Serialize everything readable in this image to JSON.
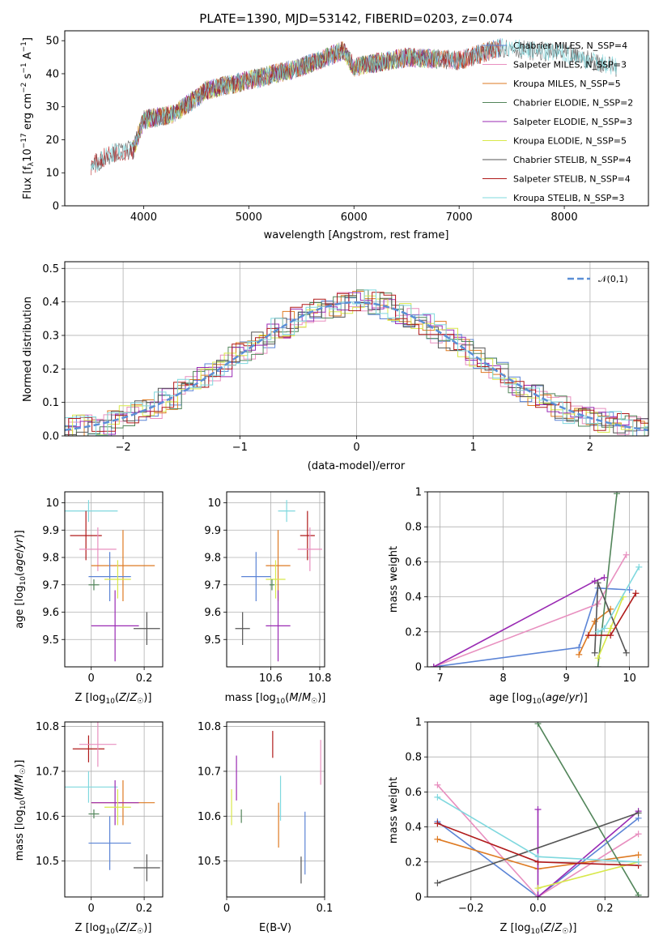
{
  "chart_data": [
    {
      "type": "line",
      "title": "PLATE=1390, MJD=53142, FIBERID=0203, z=0.074",
      "xlabel": "wavelength [Angstrom, rest frame]",
      "ylabel": "Flux [f_λ 10^-17 erg cm^-2 s^-1 A^-1]",
      "xlim": [
        3250,
        8800
      ],
      "ylim": [
        0,
        53
      ],
      "xticks": [
        4000,
        5000,
        6000,
        7000,
        8000
      ],
      "yticks": [
        0,
        10,
        20,
        30,
        40,
        50
      ],
      "legend_position": "lower-right",
      "series": [
        {
          "name": "Chabrier MILES, N_SSP=4",
          "color": "#5b84d6",
          "x_range": [
            3900,
            7400
          ]
        },
        {
          "name": "Salpeter MILES, N_SSP=3",
          "color": "#e88fbf",
          "x_range": [
            3900,
            7400
          ]
        },
        {
          "name": "Kroupa MILES, N_SSP=5",
          "color": "#de7a22",
          "x_range": [
            3900,
            7400
          ]
        },
        {
          "name": "Chabrier ELODIE, N_SSP=2",
          "color": "#52855a",
          "x_range": [
            3900,
            6800
          ]
        },
        {
          "name": "Salpeter ELODIE, N_SSP=3",
          "color": "#9a2ab3",
          "x_range": [
            3900,
            6800
          ]
        },
        {
          "name": "Kroupa ELODIE, N_SSP=5",
          "color": "#d8e84a",
          "x_range": [
            3900,
            6800
          ]
        },
        {
          "name": "Chabrier STELIB, N_SSP=4",
          "color": "#555555",
          "x_range": [
            3500,
            8500
          ]
        },
        {
          "name": "Salpeter STELIB, N_SSP=4",
          "color": "#b01a1a",
          "x_range": [
            3500,
            7400
          ]
        },
        {
          "name": "Kroupa STELIB, N_SSP=3",
          "color": "#7fd8de",
          "x_range": [
            3500,
            8500
          ]
        }
      ],
      "continuum_approx": {
        "x": [
          3500,
          3700,
          3900,
          4000,
          4300,
          4600,
          5000,
          5500,
          5900,
          6000,
          6500,
          7000,
          7400,
          8000,
          8500
        ],
        "y": [
          12,
          16,
          17,
          26,
          28,
          35,
          38,
          42,
          47,
          42,
          45,
          44,
          48,
          46,
          42
        ]
      }
    },
    {
      "type": "step",
      "xlabel": "(data-model)/error",
      "ylabel": "Normed distribution",
      "xlim": [
        -2.5,
        2.5
      ],
      "ylim": [
        0,
        0.52
      ],
      "xticks": [
        -2,
        -1,
        0,
        1,
        2
      ],
      "xtick_labels": [
        "−2",
        "−1",
        "0",
        "1",
        "2"
      ],
      "yticks": [
        0.0,
        0.1,
        0.2,
        0.3,
        0.4,
        0.5
      ],
      "ytick_labels": [
        "0.0",
        "0.1",
        "0.2",
        "0.3",
        "0.4",
        "0.5"
      ],
      "reference_curve": {
        "name": "𝒩(0,1)",
        "color": "#5b8fd6",
        "mean": 0,
        "sigma": 1
      },
      "histogram_bin_width": 0.1,
      "series_colors": [
        "#5b84d6",
        "#e88fbf",
        "#de7a22",
        "#52855a",
        "#9a2ab3",
        "#d8e84a",
        "#555555",
        "#b01a1a",
        "#7fd8de"
      ]
    },
    {
      "type": "scatter",
      "xlabel": "Z [log10(Z/Z☉)]",
      "ylabel": "age [log10(age/yr)]",
      "xlim": [
        -0.1,
        0.27
      ],
      "ylim": [
        9.4,
        10.04
      ],
      "xticks": [
        0.0,
        0.2
      ],
      "yticks": [
        9.5,
        9.6,
        9.7,
        9.8,
        9.9,
        10.0
      ],
      "points": [
        {
          "x": -0.01,
          "y": 9.97,
          "xerr": 0.11,
          "yerr": 0.04,
          "color": "#7fd8de"
        },
        {
          "x": -0.02,
          "y": 9.88,
          "xerr": 0.06,
          "yerr": 0.09,
          "color": "#b01a1a"
        },
        {
          "x": 0.025,
          "y": 9.83,
          "xerr": 0.07,
          "yerr": 0.08,
          "color": "#e88fbf"
        },
        {
          "x": 0.12,
          "y": 9.77,
          "xerr": 0.12,
          "yerr": 0.13,
          "color": "#de7a22"
        },
        {
          "x": 0.07,
          "y": 9.73,
          "xerr": 0.08,
          "yerr": 0.09,
          "color": "#5b84d6"
        },
        {
          "x": 0.1,
          "y": 9.72,
          "xerr": 0.05,
          "yerr": 0.07,
          "color": "#d8e84a"
        },
        {
          "x": 0.01,
          "y": 9.7,
          "xerr": 0.02,
          "yerr": 0.02,
          "color": "#52855a"
        },
        {
          "x": 0.09,
          "y": 9.55,
          "xerr": 0.09,
          "yerr": 0.13,
          "color": "#9a2ab3"
        },
        {
          "x": 0.21,
          "y": 9.54,
          "xerr": 0.05,
          "yerr": 0.06,
          "color": "#555555"
        }
      ]
    },
    {
      "type": "scatter",
      "xlabel": "mass [log10(M/M☉)]",
      "ylabel": "",
      "xlim": [
        10.42,
        10.82
      ],
      "ylim": [
        9.4,
        10.04
      ],
      "xticks": [
        10.6,
        10.8
      ],
      "yticks": [
        9.5,
        9.6,
        9.7,
        9.8,
        9.9,
        10.0
      ],
      "points": [
        {
          "x": 10.665,
          "y": 9.97,
          "xerr": 0.035,
          "yerr": 0.04,
          "color": "#7fd8de"
        },
        {
          "x": 10.75,
          "y": 9.88,
          "xerr": 0.03,
          "yerr": 0.09,
          "color": "#b01a1a"
        },
        {
          "x": 10.76,
          "y": 9.83,
          "xerr": 0.05,
          "yerr": 0.08,
          "color": "#e88fbf"
        },
        {
          "x": 10.63,
          "y": 9.77,
          "xerr": 0.05,
          "yerr": 0.13,
          "color": "#de7a22"
        },
        {
          "x": 10.54,
          "y": 9.73,
          "xerr": 0.06,
          "yerr": 0.09,
          "color": "#5b84d6"
        },
        {
          "x": 10.62,
          "y": 9.72,
          "xerr": 0.04,
          "yerr": 0.07,
          "color": "#d8e84a"
        },
        {
          "x": 10.605,
          "y": 9.7,
          "xerr": 0.01,
          "yerr": 0.02,
          "color": "#52855a"
        },
        {
          "x": 10.63,
          "y": 9.55,
          "xerr": 0.05,
          "yerr": 0.13,
          "color": "#9a2ab3"
        },
        {
          "x": 10.485,
          "y": 9.54,
          "xerr": 0.03,
          "yerr": 0.06,
          "color": "#555555"
        }
      ]
    },
    {
      "type": "line",
      "xlabel": "age [log10(age/yr)]",
      "ylabel": "mass weight",
      "xlim": [
        6.8,
        10.3
      ],
      "ylim": [
        0,
        1
      ],
      "xticks": [
        7,
        8,
        9,
        10
      ],
      "yticks": [
        0.0,
        0.2,
        0.4,
        0.6,
        0.8,
        1.0
      ],
      "series": [
        {
          "color": "#5b84d6",
          "x": [
            6.9,
            9.2,
            9.5,
            10.0
          ],
          "y": [
            0.0,
            0.11,
            0.45,
            0.44
          ]
        },
        {
          "color": "#e88fbf",
          "x": [
            6.9,
            9.5,
            9.95
          ],
          "y": [
            0.0,
            0.36,
            0.64
          ]
        },
        {
          "color": "#de7a22",
          "x": [
            9.2,
            9.45,
            9.7
          ],
          "y": [
            0.07,
            0.26,
            0.33
          ]
        },
        {
          "color": "#52855a",
          "x": [
            9.5,
            9.8
          ],
          "y": [
            0.0,
            0.99
          ]
        },
        {
          "color": "#9a2ab3",
          "x": [
            6.9,
            9.45,
            9.6
          ],
          "y": [
            0.0,
            0.49,
            0.51
          ]
        },
        {
          "color": "#d8e84a",
          "x": [
            9.5,
            9.7,
            9.9
          ],
          "y": [
            0.05,
            0.22,
            0.4
          ]
        },
        {
          "color": "#555555",
          "x": [
            9.45,
            9.5,
            9.95
          ],
          "y": [
            0.08,
            0.48,
            0.08
          ]
        },
        {
          "color": "#b01a1a",
          "x": [
            9.35,
            9.7,
            10.1
          ],
          "y": [
            0.18,
            0.18,
            0.42
          ]
        },
        {
          "color": "#7fd8de",
          "x": [
            9.5,
            9.6,
            10.15
          ],
          "y": [
            0.2,
            0.22,
            0.57
          ]
        }
      ]
    },
    {
      "type": "scatter",
      "xlabel": "Z [log10(Z/Z☉)]",
      "ylabel": "mass [log10(M/M☉)]",
      "xlim": [
        -0.1,
        0.27
      ],
      "ylim": [
        10.42,
        10.81
      ],
      "xticks": [
        0.0,
        0.2
      ],
      "yticks": [
        10.5,
        10.6,
        10.7,
        10.8
      ],
      "points": [
        {
          "x": -0.01,
          "y": 10.75,
          "xerr": 0.06,
          "yerr": 0.03,
          "color": "#b01a1a"
        },
        {
          "x": 0.025,
          "y": 10.76,
          "xerr": 0.07,
          "yerr": 0.05,
          "color": "#e88fbf"
        },
        {
          "x": -0.01,
          "y": 10.665,
          "xerr": 0.11,
          "yerr": 0.035,
          "color": "#7fd8de"
        },
        {
          "x": 0.12,
          "y": 10.63,
          "xerr": 0.12,
          "yerr": 0.05,
          "color": "#de7a22"
        },
        {
          "x": 0.09,
          "y": 10.63,
          "xerr": 0.09,
          "yerr": 0.05,
          "color": "#9a2ab3"
        },
        {
          "x": 0.1,
          "y": 10.62,
          "xerr": 0.05,
          "yerr": 0.04,
          "color": "#d8e84a"
        },
        {
          "x": 0.01,
          "y": 10.605,
          "xerr": 0.02,
          "yerr": 0.01,
          "color": "#52855a"
        },
        {
          "x": 0.07,
          "y": 10.54,
          "xerr": 0.08,
          "yerr": 0.06,
          "color": "#5b84d6"
        },
        {
          "x": 0.21,
          "y": 10.485,
          "xerr": 0.05,
          "yerr": 0.03,
          "color": "#555555"
        }
      ]
    },
    {
      "type": "scatter",
      "xlabel": "E(B-V)",
      "ylabel": "",
      "xlim": [
        0.0,
        0.1
      ],
      "ylim": [
        10.42,
        10.81
      ],
      "xticks": [
        0.0,
        0.1
      ],
      "yticks": [
        10.5,
        10.6,
        10.7,
        10.8
      ],
      "points": [
        {
          "x": 0.047,
          "y": 10.76,
          "yerr": 0.03,
          "color": "#b01a1a"
        },
        {
          "x": 0.096,
          "y": 10.72,
          "yerr": 0.05,
          "color": "#e88fbf"
        },
        {
          "x": 0.01,
          "y": 10.685,
          "yerr": 0.05,
          "color": "#9a2ab3"
        },
        {
          "x": 0.055,
          "y": 10.64,
          "yerr": 0.05,
          "color": "#7fd8de"
        },
        {
          "x": 0.005,
          "y": 10.62,
          "yerr": 0.04,
          "color": "#d8e84a"
        },
        {
          "x": 0.015,
          "y": 10.6,
          "yerr": 0.015,
          "color": "#52855a"
        },
        {
          "x": 0.053,
          "y": 10.58,
          "yerr": 0.05,
          "color": "#de7a22"
        },
        {
          "x": 0.08,
          "y": 10.54,
          "yerr": 0.07,
          "color": "#5b84d6"
        },
        {
          "x": 0.076,
          "y": 10.48,
          "yerr": 0.03,
          "color": "#555555"
        }
      ]
    },
    {
      "type": "line",
      "xlabel": "Z [log10(Z/Z☉)]",
      "ylabel": "mass weight",
      "xlim": [
        -0.33,
        0.33
      ],
      "ylim": [
        0,
        1
      ],
      "xticks": [
        -0.2,
        0.0,
        0.2
      ],
      "xtick_labels": [
        "−0.2",
        "0.0",
        "0.2"
      ],
      "yticks": [
        0.0,
        0.2,
        0.4,
        0.6,
        0.8,
        1.0
      ],
      "series": [
        {
          "color": "#5b84d6",
          "x": [
            -0.3,
            0.0,
            0.3
          ],
          "y": [
            0.43,
            0.0,
            0.45
          ]
        },
        {
          "color": "#e88fbf",
          "x": [
            -0.3,
            0.0,
            0.3
          ],
          "y": [
            0.64,
            0.0,
            0.36
          ]
        },
        {
          "color": "#de7a22",
          "x": [
            -0.3,
            0.0,
            0.3
          ],
          "y": [
            0.33,
            0.16,
            0.24
          ]
        },
        {
          "color": "#52855a",
          "x": [
            0.0,
            0.3
          ],
          "y": [
            0.99,
            0.01
          ]
        },
        {
          "color": "#9a2ab3",
          "x": [
            0.0,
            0.0,
            0.3
          ],
          "y": [
            0.5,
            0.0,
            0.49
          ]
        },
        {
          "color": "#d8e84a",
          "x": [
            0.0,
            0.3
          ],
          "y": [
            0.05,
            0.2
          ]
        },
        {
          "color": "#555555",
          "x": [
            -0.3,
            0.3
          ],
          "y": [
            0.08,
            0.48
          ]
        },
        {
          "color": "#b01a1a",
          "x": [
            -0.3,
            0.0,
            0.3
          ],
          "y": [
            0.42,
            0.2,
            0.18
          ]
        },
        {
          "color": "#7fd8de",
          "x": [
            -0.3,
            0.0,
            0.3
          ],
          "y": [
            0.57,
            0.23,
            0.2
          ]
        }
      ]
    }
  ]
}
